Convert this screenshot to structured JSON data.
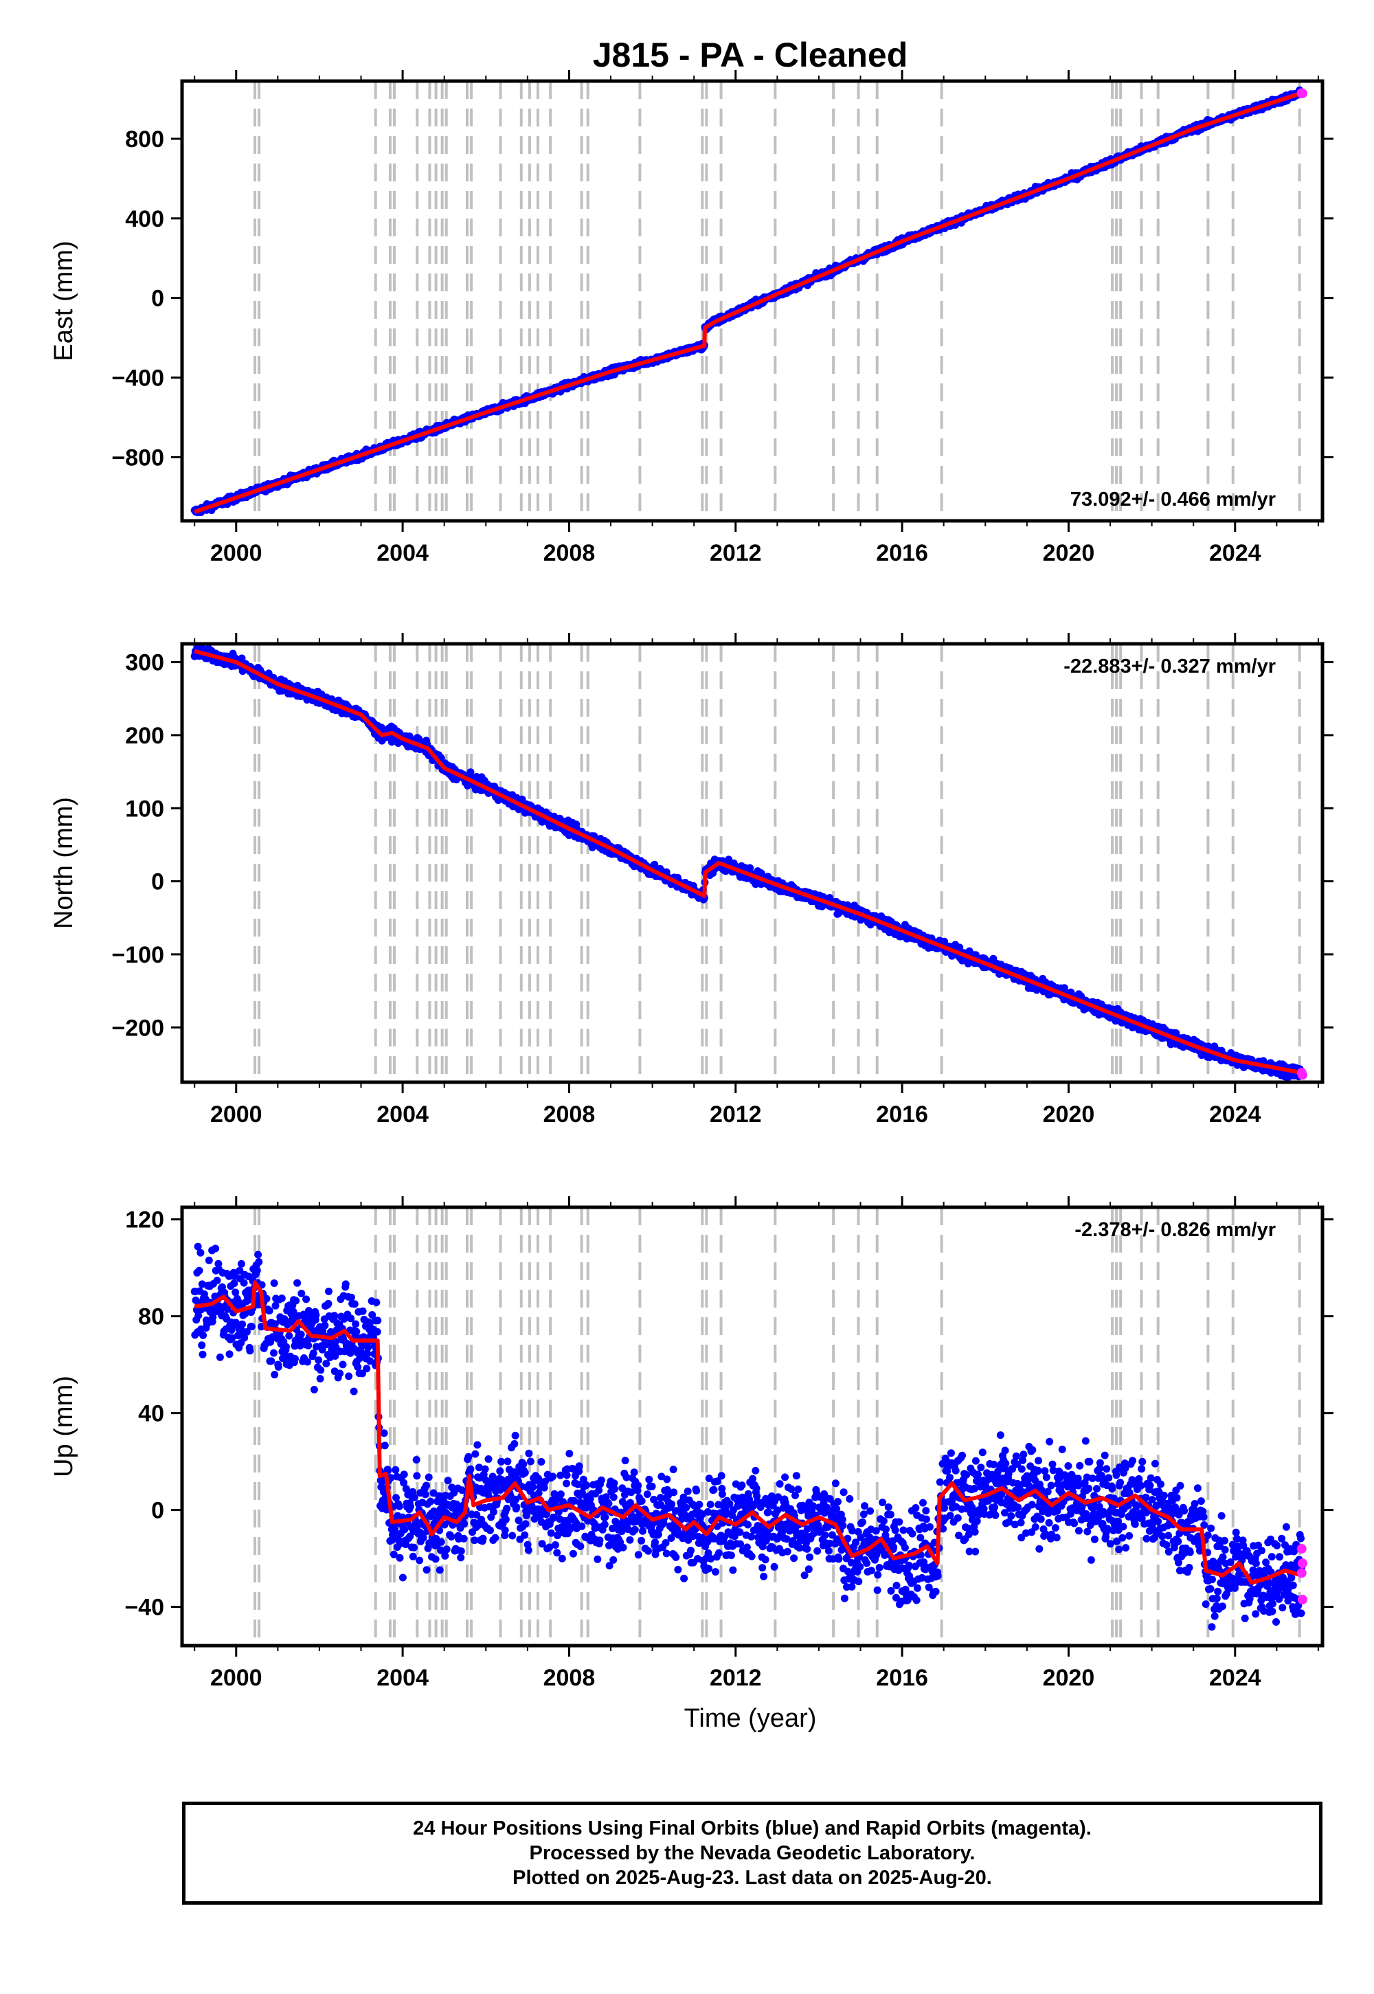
{
  "title": "J815  - PA - Cleaned",
  "xlabel": "Time (year)",
  "footer": {
    "line1": "24 Hour Positions Using Final Orbits (blue) and Rapid Orbits (magenta).",
    "line2": "Processed by the Nevada Geodetic Laboratory.",
    "line3": "Plotted on 2025-Aug-23. Last data on 2025-Aug-20."
  },
  "colors": {
    "final_points": "#0000ff",
    "rapid_points": "#ff22ff",
    "fit_line": "#ff0000",
    "event_lines": "#c0c0c0"
  },
  "chart_data": [
    {
      "type": "scatter",
      "ylabel": "East (mm)",
      "rate_label": "73.092+/- 0.466 mm/yr",
      "rate_position": "bottom-right",
      "xlim": [
        1998.7,
        2026.1
      ],
      "ylim": [
        -1120,
        1090
      ],
      "xticks": [
        2000,
        2004,
        2008,
        2012,
        2016,
        2020,
        2024
      ],
      "yticks": [
        -800,
        -400,
        0,
        400,
        800
      ],
      "scatter_spread_mm": 8,
      "fit_points": [
        [
          1999.0,
          -1075
        ],
        [
          2003.0,
          -790
        ],
        [
          2006.0,
          -575
        ],
        [
          2009.0,
          -370
        ],
        [
          2011.25,
          -240
        ],
        [
          2011.26,
          -150
        ],
        [
          2011.5,
          -120
        ],
        [
          2013.0,
          20
        ],
        [
          2016.0,
          285
        ],
        [
          2020.0,
          600
        ],
        [
          2023.0,
          850
        ],
        [
          2025.6,
          1030
        ]
      ],
      "rapid_points": [
        [
          2025.6,
          1030
        ],
        [
          2025.62,
          1028
        ]
      ],
      "grid": false
    },
    {
      "type": "scatter",
      "ylabel": "North (mm)",
      "rate_label": "-22.883+/- 0.327 mm/yr",
      "rate_position": "top-right",
      "xlim": [
        1998.7,
        2026.1
      ],
      "ylim": [
        -275,
        325
      ],
      "xticks": [
        2000,
        2004,
        2008,
        2012,
        2016,
        2020,
        2024
      ],
      "yticks": [
        -200,
        -100,
        0,
        100,
        200,
        300
      ],
      "scatter_spread_mm": 4,
      "fit_points": [
        [
          1999.0,
          315
        ],
        [
          2000.0,
          300
        ],
        [
          2001.0,
          270
        ],
        [
          2002.0,
          250
        ],
        [
          2003.0,
          228
        ],
        [
          2003.5,
          200
        ],
        [
          2003.75,
          203
        ],
        [
          2004.0,
          195
        ],
        [
          2004.6,
          182
        ],
        [
          2005.0,
          155
        ],
        [
          2006.0,
          128
        ],
        [
          2007.0,
          100
        ],
        [
          2008.0,
          72
        ],
        [
          2009.0,
          45
        ],
        [
          2010.0,
          15
        ],
        [
          2011.25,
          -20
        ],
        [
          2011.27,
          12
        ],
        [
          2011.6,
          25
        ],
        [
          2013.0,
          -5
        ],
        [
          2015.0,
          -45
        ],
        [
          2017.0,
          -90
        ],
        [
          2019.0,
          -135
        ],
        [
          2021.0,
          -180
        ],
        [
          2023.0,
          -225
        ],
        [
          2024.0,
          -245
        ],
        [
          2025.6,
          -262
        ]
      ],
      "rapid_points": [
        [
          2025.6,
          -262
        ],
        [
          2025.62,
          -265
        ]
      ],
      "grid": false
    },
    {
      "type": "scatter",
      "ylabel": "Up (mm)",
      "rate_label": "-2.378+/- 0.826 mm/yr",
      "rate_position": "top-right",
      "xlim": [
        1998.7,
        2026.1
      ],
      "ylim": [
        -56,
        125
      ],
      "xticks": [
        2000,
        2004,
        2008,
        2012,
        2016,
        2020,
        2024
      ],
      "yticks": [
        -40,
        0,
        40,
        80,
        120
      ],
      "scatter_spread_mm": 9,
      "fit_points": [
        [
          1999.0,
          84
        ],
        [
          1999.4,
          85
        ],
        [
          1999.7,
          88
        ],
        [
          2000.0,
          82
        ],
        [
          2000.4,
          84
        ],
        [
          2000.45,
          94
        ],
        [
          2000.6,
          90
        ],
        [
          2000.7,
          75
        ],
        [
          2001.3,
          74
        ],
        [
          2001.5,
          78
        ],
        [
          2001.8,
          72
        ],
        [
          2002.3,
          71
        ],
        [
          2002.6,
          74
        ],
        [
          2002.8,
          70
        ],
        [
          2003.4,
          70
        ],
        [
          2003.45,
          14
        ],
        [
          2003.6,
          15
        ],
        [
          2003.75,
          -5
        ],
        [
          2004.2,
          -4
        ],
        [
          2004.4,
          -1
        ],
        [
          2004.6,
          -6
        ],
        [
          2004.7,
          -10
        ],
        [
          2005.0,
          -3
        ],
        [
          2005.3,
          -5
        ],
        [
          2005.5,
          -1
        ],
        [
          2005.6,
          14
        ],
        [
          2005.7,
          2
        ],
        [
          2006.0,
          4
        ],
        [
          2006.4,
          5
        ],
        [
          2006.7,
          11
        ],
        [
          2007.0,
          3
        ],
        [
          2007.3,
          5
        ],
        [
          2007.5,
          0
        ],
        [
          2008.0,
          2
        ],
        [
          2008.5,
          -3
        ],
        [
          2008.8,
          1
        ],
        [
          2009.3,
          -3
        ],
        [
          2009.6,
          2
        ],
        [
          2010.0,
          -4
        ],
        [
          2010.4,
          -2
        ],
        [
          2010.8,
          -8
        ],
        [
          2011.0,
          -5
        ],
        [
          2011.3,
          -10
        ],
        [
          2011.6,
          -3
        ],
        [
          2012.0,
          -6
        ],
        [
          2012.4,
          -1
        ],
        [
          2012.8,
          -7
        ],
        [
          2013.2,
          -2
        ],
        [
          2013.6,
          -6
        ],
        [
          2014.0,
          -3
        ],
        [
          2014.4,
          -6
        ],
        [
          2014.6,
          -13
        ],
        [
          2014.8,
          -19
        ],
        [
          2015.2,
          -16
        ],
        [
          2015.5,
          -12
        ],
        [
          2015.8,
          -20
        ],
        [
          2016.3,
          -18
        ],
        [
          2016.6,
          -15
        ],
        [
          2016.85,
          -22
        ],
        [
          2016.9,
          5
        ],
        [
          2017.2,
          11
        ],
        [
          2017.5,
          4
        ],
        [
          2018.0,
          6
        ],
        [
          2018.4,
          9
        ],
        [
          2018.8,
          4
        ],
        [
          2019.2,
          8
        ],
        [
          2019.6,
          2
        ],
        [
          2020.0,
          7
        ],
        [
          2020.4,
          3
        ],
        [
          2020.8,
          5
        ],
        [
          2021.2,
          2
        ],
        [
          2021.6,
          6
        ],
        [
          2022.0,
          0
        ],
        [
          2022.4,
          -3
        ],
        [
          2022.7,
          -8
        ],
        [
          2023.2,
          -8
        ],
        [
          2023.3,
          -25
        ],
        [
          2023.7,
          -27
        ],
        [
          2024.1,
          -22
        ],
        [
          2024.4,
          -30
        ],
        [
          2024.8,
          -28
        ],
        [
          2025.2,
          -25
        ],
        [
          2025.6,
          -27
        ]
      ],
      "rapid_points": [
        [
          2025.6,
          -16
        ],
        [
          2025.6,
          -26
        ],
        [
          2025.62,
          -37
        ],
        [
          2025.62,
          -22
        ]
      ],
      "grid": false
    }
  ],
  "event_lines": [
    2000.45,
    2000.55,
    2003.35,
    2003.7,
    2003.8,
    2004.35,
    2004.65,
    2004.8,
    2004.95,
    2005.05,
    2005.55,
    2005.65,
    2006.35,
    2006.85,
    2007.05,
    2007.25,
    2007.55,
    2008.3,
    2008.45,
    2009.7,
    2011.2,
    2011.3,
    2011.65,
    2012.95,
    2014.35,
    2014.95,
    2015.4,
    2016.95,
    2021.05,
    2021.15,
    2021.25,
    2021.75,
    2022.15,
    2023.35,
    2023.95,
    2025.55
  ]
}
